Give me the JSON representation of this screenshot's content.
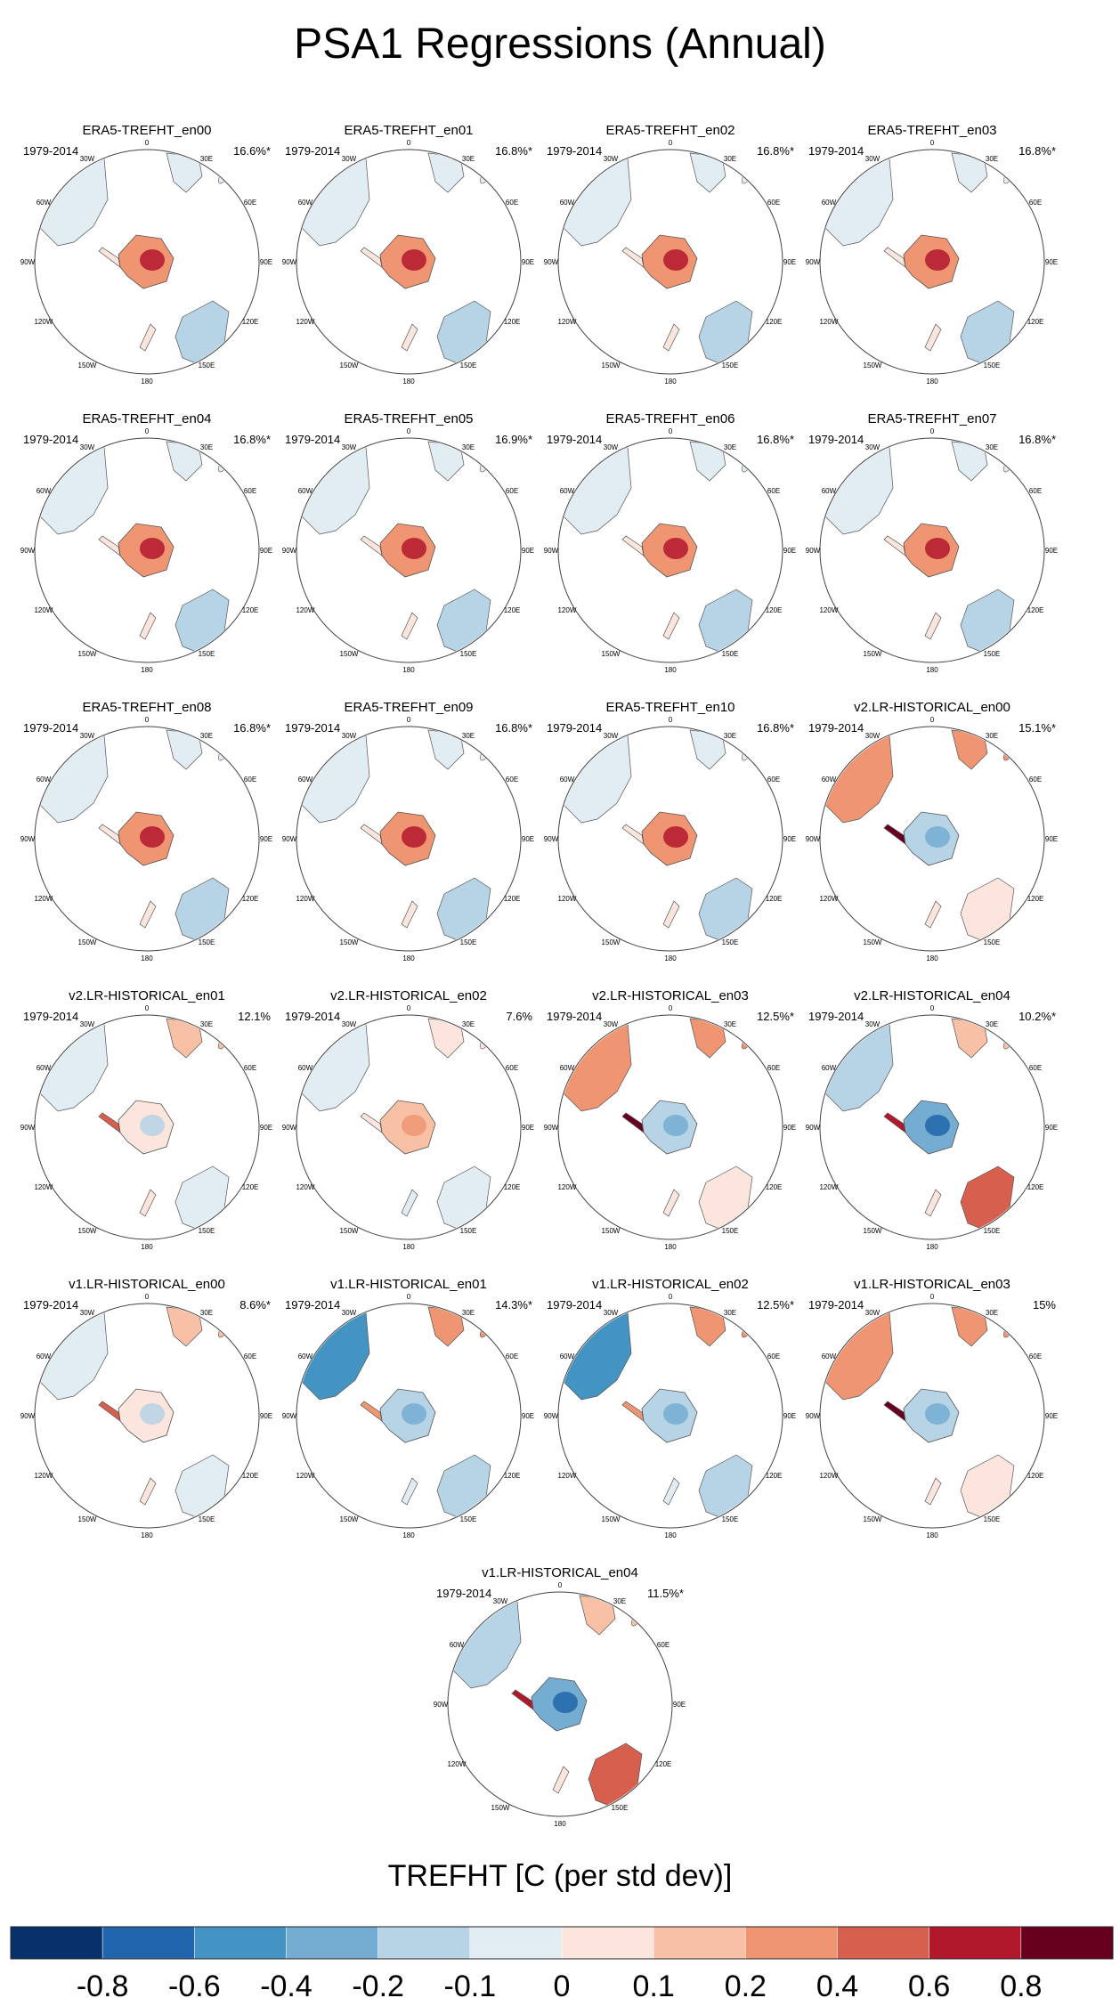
{
  "title": "PSA1 Regressions (Annual)",
  "chart_data": {
    "type": "polar-map-grid",
    "title": "PSA1 Regressions (Annual)",
    "variable_label": "TREFHT [C (per std dev)]",
    "period": "1979-2014",
    "longitude_labels": [
      "0",
      "30E",
      "60E",
      "90E",
      "120E",
      "150E",
      "180",
      "150W",
      "120W",
      "90W",
      "60W",
      "30W"
    ],
    "colorbar": {
      "ticks": [
        "-0.8",
        "-0.6",
        "-0.4",
        "-0.2",
        "-0.1",
        "0",
        "0.1",
        "0.2",
        "0.4",
        "0.6",
        "0.8"
      ],
      "colors": [
        "#08306b",
        "#2166ac",
        "#4393c3",
        "#74add1",
        "#b6d4e6",
        "#e2ecf3",
        "#fbe5dc",
        "#f8c1a6",
        "#ef9572",
        "#d6604d",
        "#b2182b",
        "#67001f"
      ]
    },
    "panels": [
      {
        "name": "ERA5-TREFHT_en00",
        "pct": "16.6%*",
        "pattern": "warm"
      },
      {
        "name": "ERA5-TREFHT_en01",
        "pct": "16.8%*",
        "pattern": "warm"
      },
      {
        "name": "ERA5-TREFHT_en02",
        "pct": "16.8%*",
        "pattern": "warm"
      },
      {
        "name": "ERA5-TREFHT_en03",
        "pct": "16.8%*",
        "pattern": "warm"
      },
      {
        "name": "ERA5-TREFHT_en04",
        "pct": "16.8%*",
        "pattern": "warm"
      },
      {
        "name": "ERA5-TREFHT_en05",
        "pct": "16.9%*",
        "pattern": "warm"
      },
      {
        "name": "ERA5-TREFHT_en06",
        "pct": "16.8%*",
        "pattern": "warm"
      },
      {
        "name": "ERA5-TREFHT_en07",
        "pct": "16.8%*",
        "pattern": "warm"
      },
      {
        "name": "ERA5-TREFHT_en08",
        "pct": "16.8%*",
        "pattern": "warm"
      },
      {
        "name": "ERA5-TREFHT_en09",
        "pct": "16.8%*",
        "pattern": "warm"
      },
      {
        "name": "ERA5-TREFHT_en10",
        "pct": "16.8%*",
        "pattern": "warm"
      },
      {
        "name": "v2.LR-HISTORICAL_en00",
        "pct": "15.1%*",
        "pattern": "dipole"
      },
      {
        "name": "v2.LR-HISTORICAL_en01",
        "pct": "12.1%",
        "pattern": "mixed"
      },
      {
        "name": "v2.LR-HISTORICAL_en02",
        "pct": "7.6%",
        "pattern": "mild"
      },
      {
        "name": "v2.LR-HISTORICAL_en03",
        "pct": "12.5%*",
        "pattern": "dipole"
      },
      {
        "name": "v2.LR-HISTORICAL_en04",
        "pct": "10.2%*",
        "pattern": "cold"
      },
      {
        "name": "v1.LR-HISTORICAL_en00",
        "pct": "8.6%*",
        "pattern": "mixed"
      },
      {
        "name": "v1.LR-HISTORICAL_en01",
        "pct": "14.3%*",
        "pattern": "cool"
      },
      {
        "name": "v1.LR-HISTORICAL_en02",
        "pct": "12.5%*",
        "pattern": "cool"
      },
      {
        "name": "v1.LR-HISTORICAL_en03",
        "pct": "15%",
        "pattern": "dipole"
      },
      {
        "name": "v1.LR-HISTORICAL_en04",
        "pct": "11.5%*",
        "pattern": "cold"
      }
    ]
  }
}
